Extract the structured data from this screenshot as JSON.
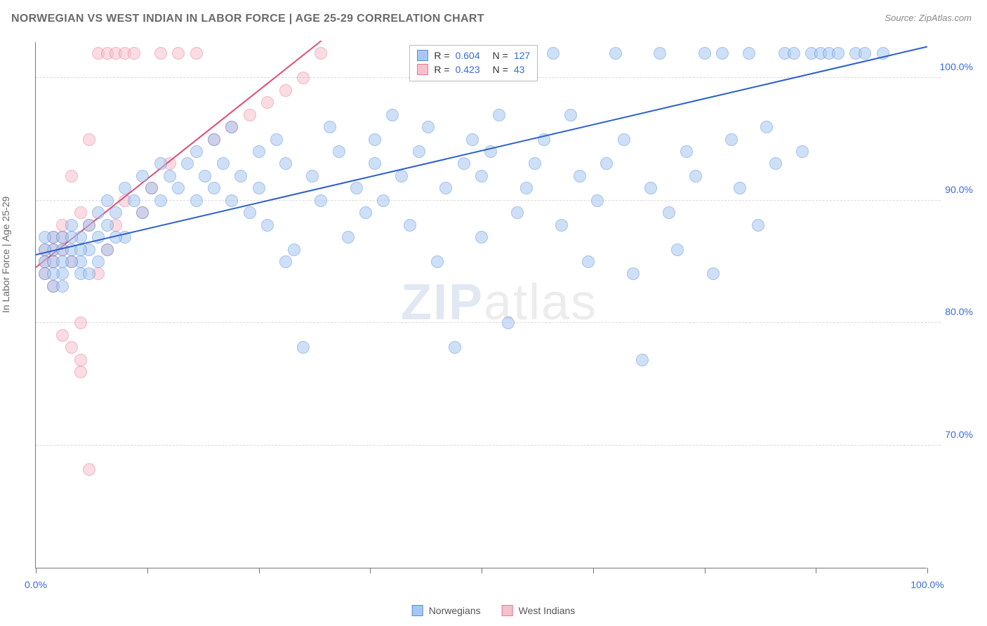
{
  "title": "NORWEGIAN VS WEST INDIAN IN LABOR FORCE | AGE 25-29 CORRELATION CHART",
  "source": "Source: ZipAtlas.com",
  "y_axis_label": "In Labor Force | Age 25-29",
  "watermark": {
    "z": "ZIP",
    "rest": "atlas"
  },
  "chart": {
    "type": "scatter",
    "background_color": "#ffffff",
    "grid_color": "#d8d8d8",
    "axis_color": "#777777",
    "xlim": [
      0,
      100
    ],
    "ylim": [
      60,
      103
    ],
    "y_ticks": [
      70,
      80,
      90,
      100
    ],
    "y_tick_labels": [
      "70.0%",
      "80.0%",
      "90.0%",
      "100.0%"
    ],
    "x_tick_positions": [
      0,
      12.5,
      25,
      37.5,
      50,
      62.5,
      75,
      87.5,
      100
    ],
    "x_tick_labels": {
      "0": "0.0%",
      "100": "100.0%"
    },
    "tick_label_color": "#3a6bd8",
    "tick_fontsize": 14,
    "title_fontsize": 16,
    "title_color": "#6b6b6b",
    "marker_radius": 9,
    "marker_opacity": 0.55,
    "trend_line_width": 2
  },
  "series": {
    "norwegians": {
      "label": "Norwegians",
      "color_fill": "#a7c7f2",
      "color_stroke": "#5b8fd6",
      "trend_color": "#2a5fd0",
      "R": "0.604",
      "N": "127",
      "trend": {
        "x1": 0,
        "y1": 85.5,
        "x2": 100,
        "y2": 102.5
      },
      "points": [
        [
          1,
          84
        ],
        [
          1,
          85
        ],
        [
          2,
          86
        ],
        [
          2,
          87
        ],
        [
          2,
          85
        ],
        [
          3,
          86
        ],
        [
          3,
          87
        ],
        [
          3,
          84
        ],
        [
          4,
          86
        ],
        [
          4,
          88
        ],
        [
          5,
          87
        ],
        [
          5,
          85
        ],
        [
          6,
          88
        ],
        [
          7,
          87
        ],
        [
          7,
          89
        ],
        [
          8,
          88
        ],
        [
          8,
          90
        ],
        [
          9,
          89
        ],
        [
          10,
          87
        ],
        [
          10,
          91
        ],
        [
          11,
          90
        ],
        [
          12,
          89
        ],
        [
          12,
          92
        ],
        [
          13,
          91
        ],
        [
          14,
          90
        ],
        [
          14,
          93
        ],
        [
          15,
          92
        ],
        [
          16,
          91
        ],
        [
          17,
          93
        ],
        [
          18,
          90
        ],
        [
          18,
          94
        ],
        [
          19,
          92
        ],
        [
          20,
          91
        ],
        [
          20,
          95
        ],
        [
          21,
          93
        ],
        [
          22,
          90
        ],
        [
          22,
          96
        ],
        [
          23,
          92
        ],
        [
          24,
          89
        ],
        [
          25,
          91
        ],
        [
          25,
          94
        ],
        [
          26,
          88
        ],
        [
          27,
          95
        ],
        [
          28,
          85
        ],
        [
          28,
          93
        ],
        [
          29,
          86
        ],
        [
          30,
          78
        ],
        [
          31,
          92
        ],
        [
          32,
          90
        ],
        [
          33,
          96
        ],
        [
          34,
          94
        ],
        [
          35,
          87
        ],
        [
          36,
          91
        ],
        [
          37,
          89
        ],
        [
          38,
          95
        ],
        [
          38,
          93
        ],
        [
          39,
          90
        ],
        [
          40,
          97
        ],
        [
          41,
          92
        ],
        [
          42,
          88
        ],
        [
          43,
          94
        ],
        [
          44,
          96
        ],
        [
          45,
          85
        ],
        [
          46,
          91
        ],
        [
          47,
          78
        ],
        [
          48,
          93
        ],
        [
          49,
          95
        ],
        [
          50,
          87
        ],
        [
          50,
          92
        ],
        [
          51,
          94
        ],
        [
          52,
          97
        ],
        [
          53,
          80
        ],
        [
          54,
          89
        ],
        [
          55,
          91
        ],
        [
          56,
          93
        ],
        [
          57,
          95
        ],
        [
          58,
          102
        ],
        [
          59,
          88
        ],
        [
          60,
          97
        ],
        [
          61,
          92
        ],
        [
          62,
          85
        ],
        [
          63,
          90
        ],
        [
          64,
          93
        ],
        [
          65,
          102
        ],
        [
          66,
          95
        ],
        [
          67,
          84
        ],
        [
          68,
          77
        ],
        [
          69,
          91
        ],
        [
          70,
          102
        ],
        [
          71,
          89
        ],
        [
          72,
          86
        ],
        [
          73,
          94
        ],
        [
          74,
          92
        ],
        [
          75,
          102
        ],
        [
          76,
          84
        ],
        [
          77,
          102
        ],
        [
          78,
          95
        ],
        [
          79,
          91
        ],
        [
          80,
          102
        ],
        [
          81,
          88
        ],
        [
          82,
          96
        ],
        [
          83,
          93
        ],
        [
          84,
          102
        ],
        [
          85,
          102
        ],
        [
          86,
          94
        ],
        [
          87,
          102
        ],
        [
          88,
          102
        ],
        [
          89,
          102
        ],
        [
          90,
          102
        ],
        [
          92,
          102
        ],
        [
          93,
          102
        ],
        [
          95,
          102
        ],
        [
          2,
          83
        ],
        [
          3,
          83
        ],
        [
          1,
          86
        ],
        [
          4,
          85
        ],
        [
          5,
          84
        ],
        [
          6,
          86
        ],
        [
          1,
          87
        ],
        [
          2,
          84
        ],
        [
          3,
          85
        ],
        [
          4,
          87
        ],
        [
          5,
          86
        ],
        [
          6,
          84
        ],
        [
          7,
          85
        ],
        [
          8,
          86
        ],
        [
          9,
          87
        ]
      ]
    },
    "west_indians": {
      "label": "West Indians",
      "color_fill": "#f6c0cc",
      "color_stroke": "#e77b96",
      "trend_color": "#e04b72",
      "R": "0.423",
      "N": "43",
      "trend": {
        "x1": 0,
        "y1": 84.5,
        "x2": 32,
        "y2": 103
      },
      "points": [
        [
          1,
          84
        ],
        [
          1,
          85
        ],
        [
          1,
          86
        ],
        [
          2,
          85
        ],
        [
          2,
          86
        ],
        [
          2,
          87
        ],
        [
          2,
          83
        ],
        [
          3,
          86
        ],
        [
          3,
          87
        ],
        [
          3,
          88
        ],
        [
          3,
          79
        ],
        [
          4,
          85
        ],
        [
          4,
          78
        ],
        [
          4,
          92
        ],
        [
          5,
          77
        ],
        [
          5,
          76
        ],
        [
          5,
          80
        ],
        [
          5,
          89
        ],
        [
          6,
          68
        ],
        [
          6,
          88
        ],
        [
          6,
          95
        ],
        [
          7,
          102
        ],
        [
          7,
          84
        ],
        [
          8,
          86
        ],
        [
          8,
          102
        ],
        [
          9,
          102
        ],
        [
          9,
          88
        ],
        [
          10,
          90
        ],
        [
          10,
          102
        ],
        [
          11,
          102
        ],
        [
          12,
          89
        ],
        [
          13,
          91
        ],
        [
          14,
          102
        ],
        [
          15,
          93
        ],
        [
          16,
          102
        ],
        [
          18,
          102
        ],
        [
          20,
          95
        ],
        [
          22,
          96
        ],
        [
          24,
          97
        ],
        [
          26,
          98
        ],
        [
          28,
          99
        ],
        [
          30,
          100
        ],
        [
          32,
          102
        ]
      ]
    }
  },
  "legend_top": {
    "r_label": "R =",
    "n_label": "N ="
  },
  "legend_bottom": {
    "items": [
      "norwegians",
      "west_indians"
    ]
  }
}
